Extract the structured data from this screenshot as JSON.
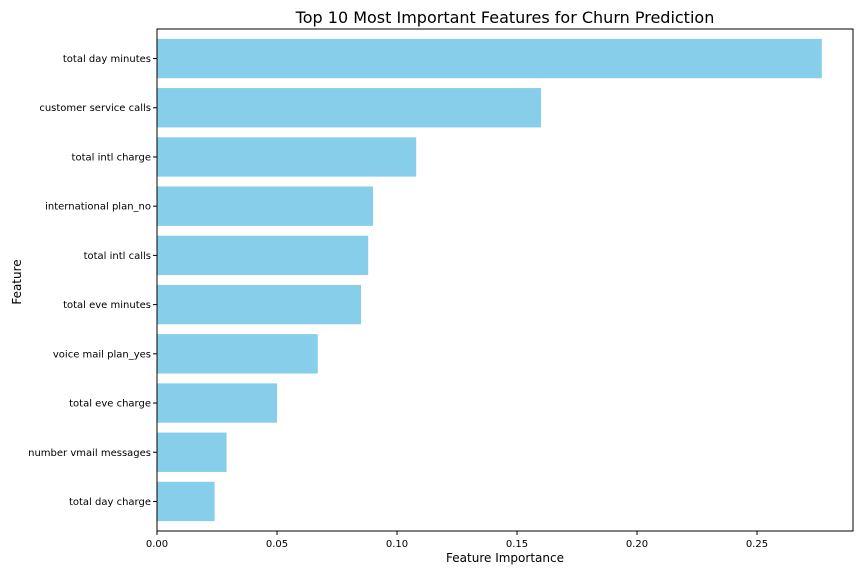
{
  "chart_data": {
    "type": "bar",
    "orientation": "horizontal",
    "title": "Top 10 Most Important Features for Churn Prediction",
    "xlabel": "Feature Importance",
    "ylabel": "Feature",
    "categories": [
      "total day minutes",
      "customer service calls",
      "total intl charge",
      "international plan_no",
      "total intl calls",
      "total eve minutes",
      "voice mail plan_yes",
      "total eve charge",
      "number vmail messages",
      "total day charge"
    ],
    "values": [
      0.277,
      0.16,
      0.108,
      0.09,
      0.088,
      0.085,
      0.067,
      0.05,
      0.029,
      0.024
    ],
    "xlim": [
      0,
      0.29
    ],
    "xticks": [
      0.0,
      0.05,
      0.1,
      0.15,
      0.2,
      0.25
    ],
    "xtick_labels": [
      "0.00",
      "0.05",
      "0.10",
      "0.15",
      "0.20",
      "0.25"
    ],
    "bar_color": "#87ceeb",
    "grid": false,
    "legend": false
  }
}
